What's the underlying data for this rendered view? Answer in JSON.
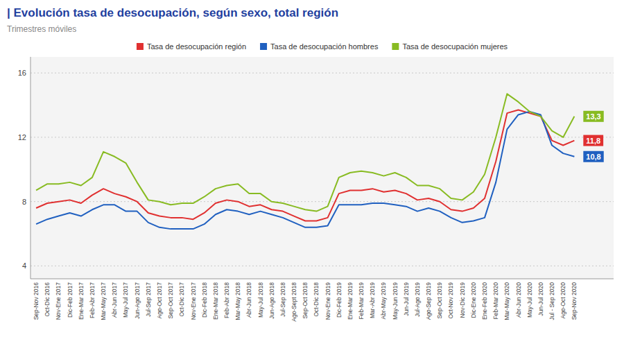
{
  "chart_data": {
    "type": "line",
    "title": "| Evolución tasa de desocupación, según sexo, total región",
    "subtitle": "Trimestres móviles",
    "categories": [
      "Sep-Nov 2016",
      "Oct-Dic 2016",
      "Nov-Ene 2017",
      "Dic-Feb 2017",
      "Ene-Mar 2017",
      "Feb-Abr 2017",
      "Mar-May 2017",
      "Abr-Jun 2017",
      "May-Jul 2017",
      "Jun-Ago 2017",
      "Jul-Sep 2017",
      "Ago-Oct 2017",
      "Sep-Oct 2017",
      "Oct-Dic 2017",
      "Nov-Ene 2017",
      "Dic-Feb 2018",
      "Ene-Mar 2018",
      "Feb-Abr 2018",
      "Mar-May 2018",
      "Abr-Jun 2018",
      "May-Jul 2018",
      "Jun-Ago 2018",
      "Jul-Sep 2018",
      "Ago-Sept 2018",
      "Sep-Oct 2018",
      "Oct-Dic 2018",
      "Nov-Ene 2019",
      "Dic-Feb 2019",
      "Ene-Mar 2019",
      "Feb-Mar 2019",
      "Mar-Abr 2019",
      "Abr-May 2019",
      "May-Jun 2019",
      "Jun-Jul 2019",
      "Jul-Ago 2019",
      "Ago-Sep 2019",
      "Sep-Oct 2019",
      "Oct-Nov 2019",
      "Nov-Dic 2019",
      "Dic-Ene 2020",
      "Ene-Feb 2020",
      "Feb-Mar 2020",
      "Mar-May 2020",
      "Abr-Jun 2020",
      "May-Jul 2020",
      "Jun-Jul 2020",
      "Jul - Sep 2020",
      "Ago-Oct 2020",
      "Sep-Nov 2020"
    ],
    "series": [
      {
        "name": "Tasa de desocupación región",
        "color": "#e03030",
        "values": [
          7.6,
          7.9,
          8.0,
          8.1,
          7.9,
          8.4,
          8.8,
          8.5,
          8.3,
          8.0,
          7.3,
          7.1,
          7.0,
          7.0,
          6.9,
          7.3,
          7.9,
          8.1,
          8.0,
          7.7,
          7.8,
          7.5,
          7.4,
          7.1,
          6.8,
          6.8,
          7.0,
          8.5,
          8.7,
          8.7,
          8.8,
          8.6,
          8.7,
          8.5,
          8.1,
          8.2,
          8.0,
          7.5,
          7.4,
          7.6,
          8.2,
          10.5,
          13.5,
          13.7,
          13.5,
          13.3,
          11.8,
          11.5,
          11.8
        ],
        "value_labels": [
          null,
          null,
          null,
          null,
          null,
          null,
          null,
          null,
          null,
          null,
          null,
          null,
          null,
          null,
          null,
          null,
          null,
          null,
          null,
          null,
          null,
          null,
          null,
          null,
          null,
          null,
          null,
          null,
          null,
          null,
          null,
          null,
          null,
          null,
          null,
          null,
          null,
          null,
          null,
          null,
          null,
          null,
          null,
          null,
          null,
          null,
          null,
          null,
          "11,8"
        ]
      },
      {
        "name": "Tasa de desocupación hombres",
        "color": "#2060c0",
        "values": [
          6.6,
          6.9,
          7.1,
          7.3,
          7.1,
          7.5,
          7.8,
          7.8,
          7.4,
          7.4,
          6.7,
          6.4,
          6.3,
          6.3,
          6.3,
          6.6,
          7.2,
          7.5,
          7.4,
          7.2,
          7.4,
          7.2,
          7.0,
          6.7,
          6.4,
          6.4,
          6.5,
          7.8,
          7.8,
          7.8,
          7.9,
          7.9,
          7.8,
          7.7,
          7.4,
          7.6,
          7.4,
          7.0,
          6.7,
          6.8,
          7.0,
          9.2,
          12.5,
          13.4,
          13.6,
          13.4,
          11.5,
          11.0,
          10.8
        ],
        "value_labels": [
          null,
          null,
          null,
          null,
          null,
          null,
          null,
          null,
          null,
          null,
          null,
          null,
          null,
          null,
          null,
          null,
          null,
          null,
          null,
          null,
          null,
          null,
          null,
          null,
          null,
          null,
          null,
          null,
          null,
          null,
          null,
          null,
          null,
          null,
          null,
          null,
          null,
          null,
          null,
          null,
          null,
          null,
          null,
          null,
          null,
          null,
          null,
          null,
          "10,8"
        ]
      },
      {
        "name": "Tasa de desocupación mujeres",
        "color": "#88bb22",
        "values": [
          8.7,
          9.1,
          9.1,
          9.2,
          9.0,
          9.5,
          11.1,
          10.8,
          10.4,
          9.2,
          8.1,
          8.0,
          7.8,
          7.9,
          7.9,
          8.3,
          8.8,
          9.0,
          9.1,
          8.5,
          8.5,
          8.0,
          7.9,
          7.7,
          7.5,
          7.4,
          7.7,
          9.5,
          9.8,
          9.9,
          9.8,
          9.6,
          9.8,
          9.5,
          9.0,
          9.0,
          8.8,
          8.2,
          8.1,
          8.6,
          9.7,
          12.0,
          14.7,
          14.2,
          13.6,
          13.3,
          12.4,
          12.0,
          13.3
        ],
        "value_labels": [
          null,
          null,
          null,
          null,
          null,
          null,
          null,
          null,
          null,
          null,
          null,
          null,
          null,
          null,
          null,
          null,
          null,
          null,
          null,
          null,
          null,
          null,
          null,
          null,
          null,
          null,
          null,
          null,
          null,
          null,
          null,
          null,
          null,
          null,
          null,
          null,
          null,
          null,
          null,
          null,
          null,
          null,
          null,
          null,
          null,
          null,
          null,
          null,
          "13,3"
        ]
      }
    ],
    "ylim": [
      3.2,
      17.0
    ],
    "yticks": [
      4,
      8,
      12,
      16
    ],
    "grid": true,
    "legend": "top"
  }
}
